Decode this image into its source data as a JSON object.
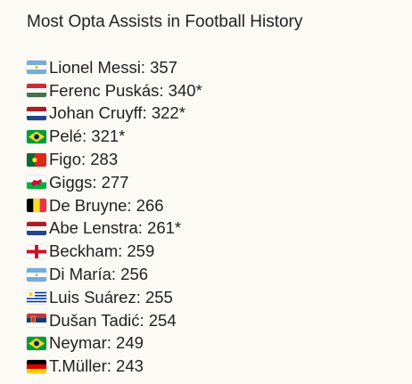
{
  "post": {
    "title": "Most Opta Assists in Football History",
    "entries": [
      {
        "text": "Lionel Messi: 357",
        "flag_icon": "argentina-flag-icon"
      },
      {
        "text": "Ferenc Puskás: 340*",
        "flag_icon": "hungary-flag-icon"
      },
      {
        "text": "Johan Cruyff: 322*",
        "flag_icon": "netherlands-flag-icon"
      },
      {
        "text": "Pelé: 321*",
        "flag_icon": "brazil-flag-icon"
      },
      {
        "text": "Figo: 283",
        "flag_icon": "portugal-flag-icon"
      },
      {
        "text": "Giggs: 277",
        "flag_icon": "wales-flag-icon"
      },
      {
        "text": "De Bruyne: 266",
        "flag_icon": "belgium-flag-icon"
      },
      {
        "text": "Abe Lenstra: 261*",
        "flag_icon": "netherlands-flag-icon"
      },
      {
        "text": "Beckham: 259",
        "flag_icon": "england-flag-icon"
      },
      {
        "text": "Di María: 256",
        "flag_icon": "argentina-flag-icon"
      },
      {
        "text": "Luis Suárez: 255",
        "flag_icon": "uruguay-flag-icon"
      },
      {
        "text": "Dušan Tadić: 254",
        "flag_icon": "serbia-flag-icon"
      },
      {
        "text": "Neymar: 249",
        "flag_icon": "brazil-flag-icon"
      },
      {
        "text": "T.Müller: 243",
        "flag_icon": "germany-flag-icon"
      }
    ]
  }
}
